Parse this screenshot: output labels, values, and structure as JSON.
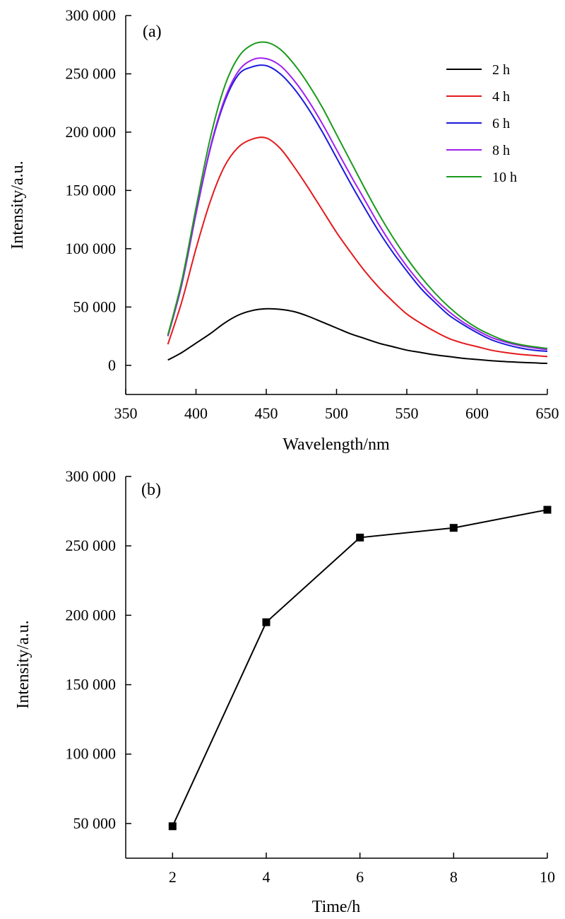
{
  "chart_data": [
    {
      "type": "line",
      "panel_label": "(a)",
      "xlabel": "Wavelength/nm",
      "ylabel": "Intensity/a.u.",
      "xlim": [
        350,
        650
      ],
      "ylim": [
        -25000,
        300000
      ],
      "xticks": [
        350,
        400,
        450,
        500,
        550,
        600,
        650
      ],
      "xtick_labels": [
        "350",
        "400",
        "450",
        "500",
        "550",
        "600",
        "650"
      ],
      "yticks": [
        0,
        50000,
        100000,
        150000,
        200000,
        250000,
        300000
      ],
      "ytick_labels": [
        "0",
        "50 000",
        "100 000",
        "150 000",
        "200 000",
        "250 000",
        "300 000"
      ],
      "grid": false,
      "legend_position": "top-right",
      "x": [
        380,
        390,
        400,
        410,
        420,
        430,
        440,
        450,
        460,
        470,
        480,
        490,
        500,
        510,
        520,
        530,
        540,
        550,
        560,
        570,
        580,
        590,
        600,
        610,
        620,
        630,
        640,
        650
      ],
      "series": [
        {
          "name": "2 h",
          "color": "#000000",
          "values": [
            4500,
            11000,
            19000,
            27000,
            36000,
            43000,
            47000,
            48500,
            48000,
            46000,
            42000,
            37000,
            32000,
            27000,
            23000,
            19000,
            16000,
            13000,
            11000,
            9000,
            7500,
            6000,
            5000,
            4000,
            3200,
            2600,
            2100,
            1700
          ]
        },
        {
          "name": "4 h",
          "color": "#e41a1c",
          "values": [
            18000,
            55000,
            100000,
            140000,
            170000,
            187000,
            194000,
            195000,
            186000,
            170000,
            152000,
            133000,
            114000,
            97000,
            81000,
            67000,
            55000,
            44000,
            36000,
            29000,
            23000,
            19000,
            16000,
            13000,
            11000,
            9500,
            8500,
            7500
          ]
        },
        {
          "name": "6 h",
          "color": "#1a1adb",
          "values": [
            25000,
            70000,
            130000,
            185000,
            225000,
            249000,
            256000,
            257000,
            250000,
            237000,
            220000,
            200000,
            178000,
            156000,
            135000,
            115000,
            97000,
            81000,
            66000,
            54000,
            43000,
            35000,
            28000,
            22000,
            18000,
            15000,
            13000,
            12000
          ]
        },
        {
          "name": "8 h",
          "color": "#a020f0",
          "values": [
            25000,
            70000,
            130000,
            186000,
            227000,
            252000,
            262000,
            263000,
            257000,
            244000,
            227000,
            207000,
            185000,
            163000,
            142000,
            121000,
            102000,
            85000,
            70000,
            57000,
            46000,
            37000,
            30000,
            24000,
            20000,
            17000,
            15000,
            13500
          ]
        },
        {
          "name": "10 h",
          "color": "#1a9a1a",
          "values": [
            26000,
            73000,
            135000,
            194000,
            238000,
            264000,
            275000,
            277000,
            271000,
            258000,
            241000,
            221000,
            198000,
            175000,
            152000,
            130000,
            110000,
            92000,
            76000,
            62000,
            50000,
            40000,
            32000,
            26000,
            21000,
            18000,
            16000,
            14500
          ]
        }
      ]
    },
    {
      "type": "line",
      "panel_label": "(b)",
      "xlabel": "Time/h",
      "ylabel": "Intensity/a.u.",
      "xlim": [
        1,
        10
      ],
      "ylim": [
        25000,
        300000
      ],
      "xticks": [
        2,
        4,
        6,
        8,
        10
      ],
      "xtick_labels": [
        "2",
        "4",
        "6",
        "8",
        "10"
      ],
      "yticks": [
        50000,
        100000,
        150000,
        200000,
        250000,
        300000
      ],
      "ytick_labels": [
        "50 000",
        "100 000",
        "150 000",
        "200 000",
        "250 000",
        "300 000"
      ],
      "grid": false,
      "marker": "square",
      "x": [
        2,
        4,
        6,
        8,
        10
      ],
      "series": [
        {
          "color": "#000000",
          "values": [
            48000,
            195000,
            256000,
            263000,
            276000
          ]
        }
      ]
    }
  ]
}
